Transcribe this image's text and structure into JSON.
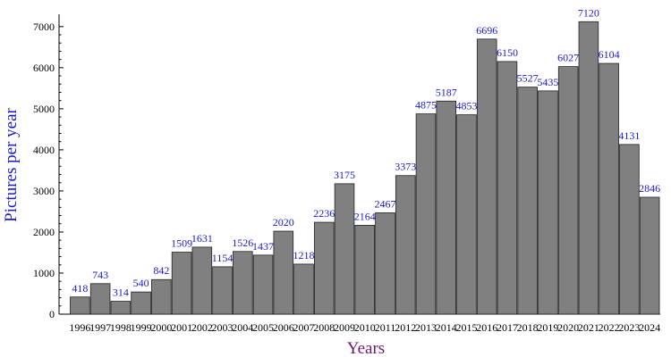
{
  "chart_data": {
    "type": "bar",
    "categories": [
      "1996",
      "1997",
      "1998",
      "1999",
      "2000",
      "2001",
      "2002",
      "2003",
      "2004",
      "2005",
      "2006",
      "2007",
      "2008",
      "2009",
      "2010",
      "2011",
      "2012",
      "2013",
      "2014",
      "2015",
      "2016",
      "2017",
      "2018",
      "2019",
      "2020",
      "2021",
      "2022",
      "2023",
      "2024"
    ],
    "values": [
      418,
      743,
      314,
      540,
      842,
      1509,
      1631,
      1154,
      1526,
      1437,
      2020,
      1218,
      2236,
      3175,
      2164,
      2467,
      3373,
      4875,
      5187,
      4853,
      6696,
      6150,
      5527,
      5435,
      6027,
      7120,
      6104,
      4131,
      2846
    ],
    "title": "",
    "xlabel": "Years",
    "ylabel": "Pictures per year",
    "ylim": [
      0,
      7300
    ],
    "yticks": [
      0,
      1000,
      2000,
      3000,
      4000,
      5000,
      6000,
      7000
    ],
    "grid": false,
    "colors": {
      "bar_fill": "#808080",
      "bar_edge": "#222222",
      "data_label": "#1a1acc",
      "ylabel": "#1a1acc",
      "xlabel": "#6b1a6b"
    }
  }
}
